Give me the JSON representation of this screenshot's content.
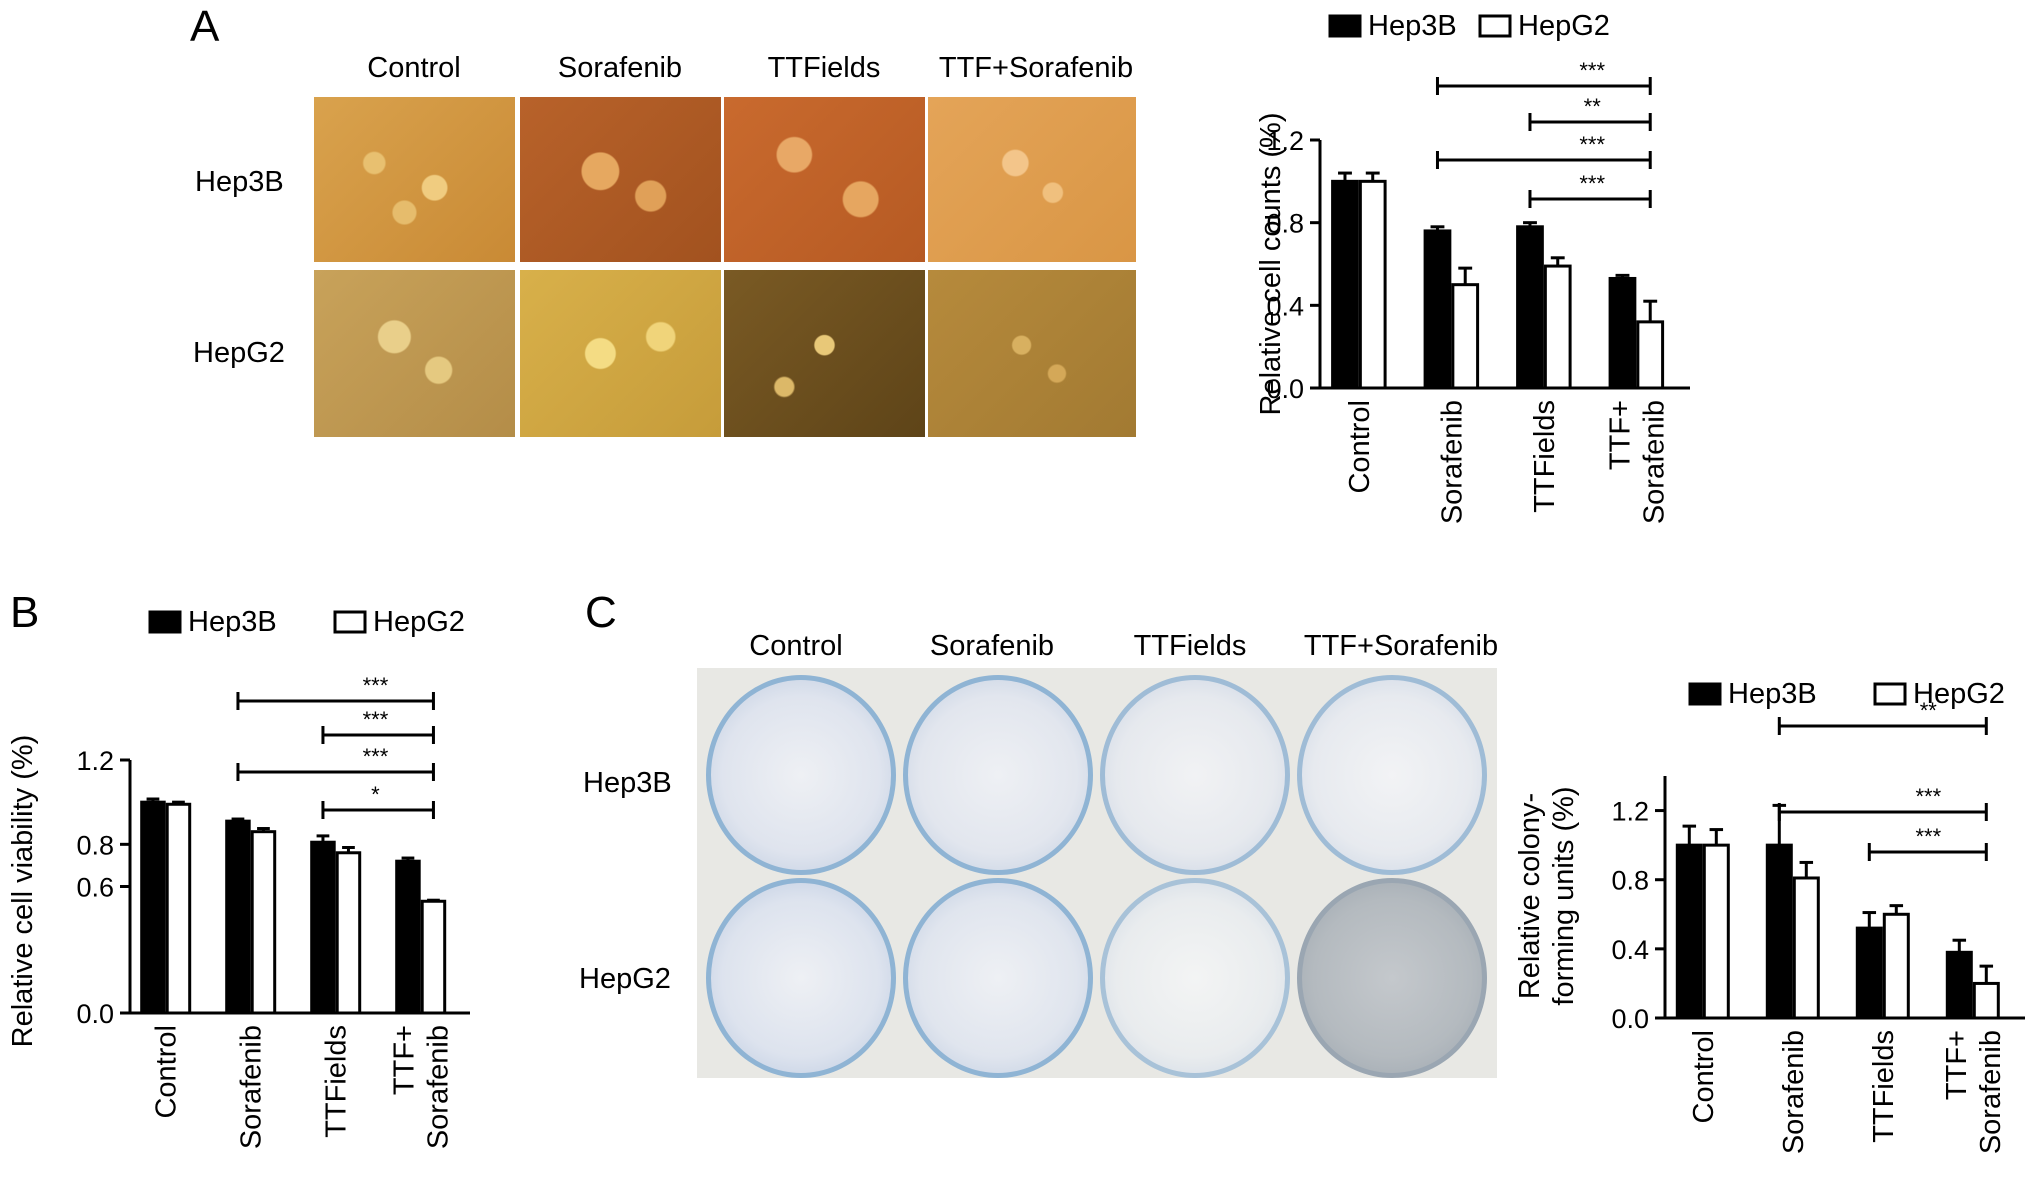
{
  "panels": {
    "A": {
      "letter": "A",
      "columns": [
        "Control",
        "Sorafenib",
        "TTFields",
        "TTF+Sorafenib"
      ],
      "rows": [
        "Hep3B",
        "HepG2"
      ]
    },
    "B": {
      "letter": "B"
    },
    "C": {
      "letter": "C",
      "columns": [
        "Control",
        "Sorafenib",
        "TTFields",
        "TTF+Sorafenib"
      ],
      "rows": [
        "Hep3B",
        "HepG2"
      ]
    }
  },
  "colors": {
    "hep3b": "#000000",
    "hepg2": "#ffffff",
    "stroke": "#000000"
  },
  "chart_data": [
    {
      "id": "A",
      "type": "bar",
      "categories": [
        [
          "Control"
        ],
        [
          "Sorafenib"
        ],
        [
          "TTFields"
        ],
        [
          "TTF+",
          "Sorafenib"
        ]
      ],
      "series": [
        {
          "name": "Hep3B",
          "values": [
            1.0,
            0.76,
            0.78,
            0.53
          ],
          "errors": [
            0.04,
            0.02,
            0.02,
            0.015
          ]
        },
        {
          "name": "HepG2",
          "values": [
            1.0,
            0.5,
            0.59,
            0.32
          ],
          "errors": [
            0.04,
            0.08,
            0.04,
            0.1
          ]
        }
      ],
      "ylabel": "Relative cell counts (%)",
      "ylim": [
        0.0,
        1.2
      ],
      "yticks": [
        0.0,
        0.4,
        0.8,
        1.2
      ],
      "yticklabels": [
        "0.0",
        "0.4",
        "0.8",
        "1.2"
      ],
      "legend": "top",
      "significance": [
        {
          "label": "***",
          "from": 1,
          "to": 3,
          "level": 4
        },
        {
          "label": "**",
          "from": 2,
          "to": 3,
          "level": 3
        },
        {
          "label": "***",
          "from": 1,
          "to": 3,
          "level": 2
        },
        {
          "label": "***",
          "from": 2,
          "to": 3,
          "level": 1
        }
      ]
    },
    {
      "id": "B",
      "type": "bar",
      "categories": [
        [
          "Control"
        ],
        [
          "Sorafenib"
        ],
        [
          "TTFields"
        ],
        [
          "TTF+",
          "Sorafenib"
        ]
      ],
      "series": [
        {
          "name": "Hep3B",
          "values": [
            1.0,
            0.91,
            0.81,
            0.72
          ],
          "errors": [
            0.015,
            0.01,
            0.03,
            0.015
          ]
        },
        {
          "name": "HepG2",
          "values": [
            0.99,
            0.86,
            0.76,
            0.53
          ],
          "errors": [
            0.01,
            0.015,
            0.025,
            0.005
          ]
        }
      ],
      "ylabel": "Relative cell viability (%)",
      "ylim": [
        0.0,
        1.2
      ],
      "yticks": [
        0.0,
        0.6,
        0.8,
        1.2
      ],
      "yticklabels": [
        "0.0",
        "0.6",
        "0.8",
        "1.2"
      ],
      "legend": "top",
      "significance": [
        {
          "label": "***",
          "from": 1,
          "to": 3,
          "level": 4
        },
        {
          "label": "***",
          "from": 2,
          "to": 3,
          "level": 3
        },
        {
          "label": "***",
          "from": 1,
          "to": 3,
          "level": 2
        },
        {
          "label": "*",
          "from": 2,
          "to": 3,
          "level": 1
        }
      ]
    },
    {
      "id": "C",
      "type": "bar",
      "categories": [
        [
          "Control"
        ],
        [
          "Sorafenib"
        ],
        [
          "TTFields"
        ],
        [
          "TTF+",
          "Sorafenib"
        ]
      ],
      "series": [
        {
          "name": "Hep3B",
          "values": [
            1.0,
            1.0,
            0.52,
            0.38
          ],
          "errors": [
            0.11,
            0.23,
            0.09,
            0.07
          ]
        },
        {
          "name": "HepG2",
          "values": [
            1.0,
            0.81,
            0.6,
            0.2
          ],
          "errors": [
            0.09,
            0.09,
            0.05,
            0.1
          ]
        }
      ],
      "ylabel": [
        "Relative colony-",
        "forming units (%)"
      ],
      "ylim": [
        0.0,
        1.4
      ],
      "yticks": [
        0.0,
        0.4,
        0.8,
        1.2
      ],
      "yticklabels": [
        "0.0",
        "0.4",
        "0.8",
        "1.2"
      ],
      "legend": "top",
      "significance": [
        {
          "label": "**",
          "from": 1,
          "to": 3,
          "level": 3
        },
        {
          "label": "***",
          "from": 1,
          "to": 3,
          "level": 2
        },
        {
          "label": "***",
          "from": 2,
          "to": 3,
          "level": 1
        }
      ]
    }
  ]
}
